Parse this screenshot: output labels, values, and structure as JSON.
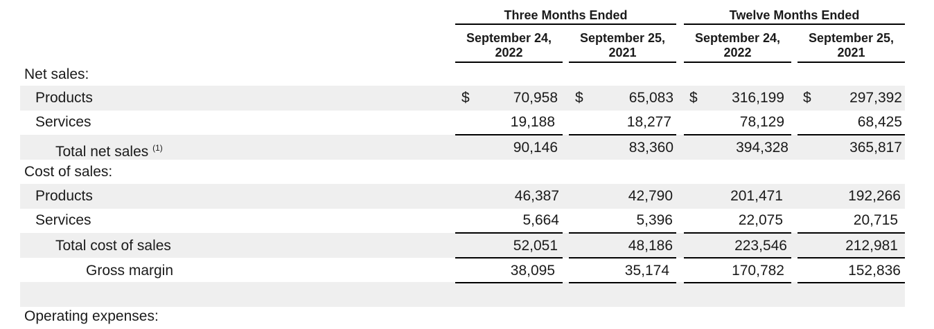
{
  "header": {
    "groups": [
      "Three Months Ended",
      "Twelve Months Ended"
    ],
    "columns": [
      {
        "line1": "September 24,",
        "line2": "2022"
      },
      {
        "line1": "September 25,",
        "line2": "2021"
      },
      {
        "line1": "September 24,",
        "line2": "2022"
      },
      {
        "line1": "September 25,",
        "line2": "2021"
      }
    ]
  },
  "currency_symbol": "$",
  "sections": {
    "net_sales": "Net sales:",
    "cost_of_sales": "Cost of sales:",
    "operating_expenses": "Operating expenses:"
  },
  "rows": {
    "ns_products": {
      "label": "Products",
      "values": [
        "70,958",
        "65,083",
        "316,199",
        "297,392"
      ]
    },
    "ns_services": {
      "label": "Services",
      "values": [
        "19,188",
        "18,277",
        "78,129",
        "68,425"
      ]
    },
    "ns_total": {
      "label": "Total net sales",
      "note": "(1)",
      "values": [
        "90,146",
        "83,360",
        "394,328",
        "365,817"
      ]
    },
    "cs_products": {
      "label": "Products",
      "values": [
        "46,387",
        "42,790",
        "201,471",
        "192,266"
      ]
    },
    "cs_services": {
      "label": "Services",
      "values": [
        "5,664",
        "5,396",
        "22,075",
        "20,715"
      ]
    },
    "cs_total": {
      "label": "Total cost of sales",
      "values": [
        "52,051",
        "48,186",
        "223,546",
        "212,981"
      ]
    },
    "gross_margin": {
      "label": "Gross margin",
      "values": [
        "38,095",
        "35,174",
        "170,782",
        "152,836"
      ]
    }
  }
}
